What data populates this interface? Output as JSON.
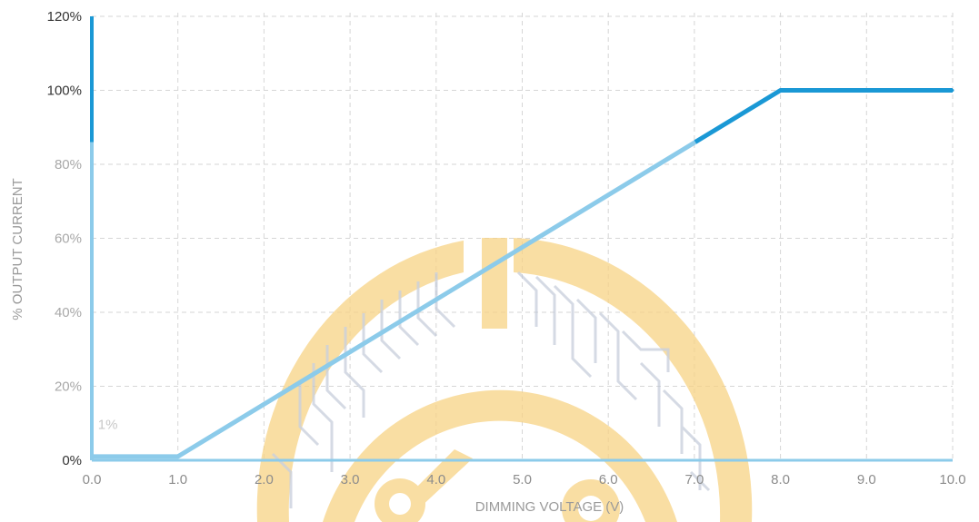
{
  "chart_data": {
    "type": "line",
    "title": "",
    "xlabel": "DIMMING VOLTAGE (V)",
    "ylabel": "% OUTPUT CURRENT",
    "xlim": [
      0,
      10
    ],
    "ylim": [
      0,
      120
    ],
    "grid": true,
    "x_ticks": [
      "0.0",
      "1.0",
      "2.0",
      "3.0",
      "4.0",
      "5.0",
      "6.0",
      "7.0",
      "8.0",
      "9.0",
      "10.0"
    ],
    "x_tick_values": [
      0,
      1,
      2,
      3,
      4,
      5,
      6,
      7,
      8,
      9,
      10
    ],
    "y_ticks": [
      "0%",
      "20%",
      "40%",
      "60%",
      "80%",
      "100%",
      "120%"
    ],
    "y_tick_values": [
      0,
      20,
      40,
      60,
      80,
      100,
      120
    ],
    "annotations": [
      {
        "text": "1%",
        "x": 0.05,
        "y": 5
      }
    ],
    "series": [
      {
        "x": [
          0,
          1.0,
          8.0,
          10.0
        ],
        "values": [
          1,
          1,
          100,
          100
        ],
        "color_light": "#8ccbea",
        "color_dark": "#1a98d5"
      }
    ],
    "vertical_bar": {
      "x": 0,
      "y_top": 120,
      "y_split": 86
    }
  },
  "colors": {
    "line_light": "#8ccbea",
    "line_dark": "#1a98d5",
    "baseline": "#8ccbea",
    "tick_x": "#8c8c8c",
    "tick_y_strong": "#333333",
    "tick_y_muted": "#a8a8a8",
    "annotation": "#c8c8c8",
    "watermark_ring": "#f7c96a",
    "watermark_circuit": "#9aa7bd"
  },
  "watermark": {
    "description_icon": "circuit-globe-logo-icon"
  }
}
